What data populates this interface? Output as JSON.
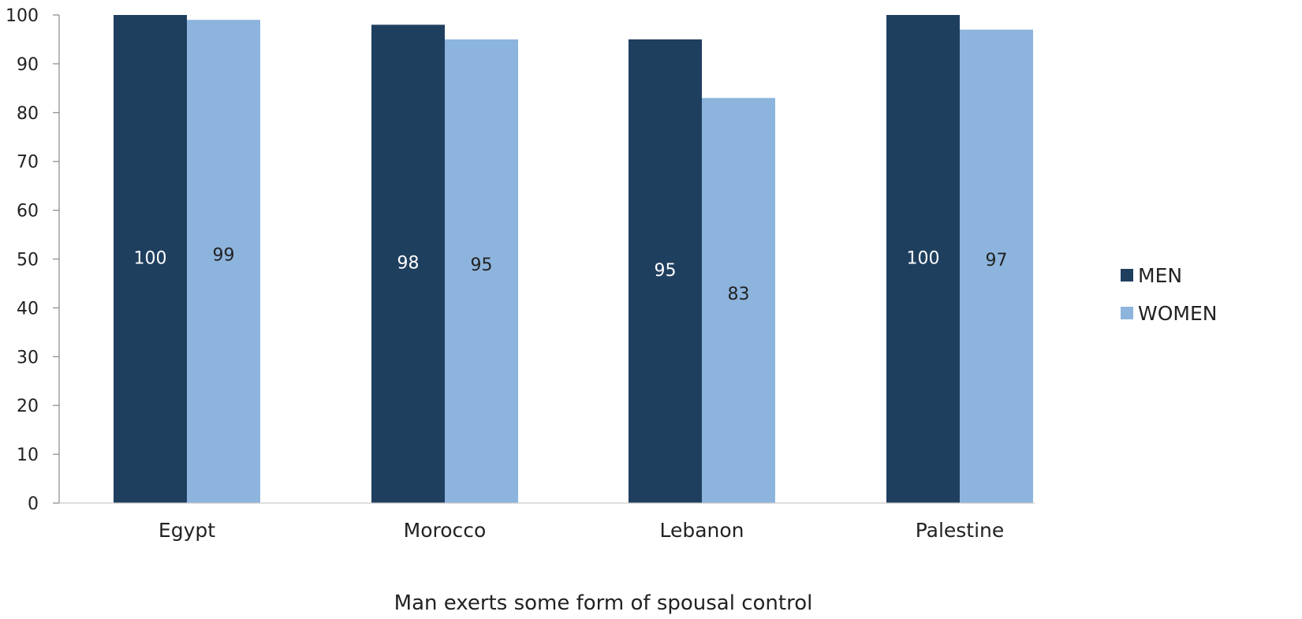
{
  "chart_data": {
    "type": "bar",
    "title": "",
    "xlabel": "Man exerts some form of spousal control",
    "ylabel": "",
    "ylim": [
      0,
      100
    ],
    "yticks": [
      0,
      10,
      20,
      30,
      40,
      50,
      60,
      70,
      80,
      90,
      100
    ],
    "categories": [
      "Egypt",
      "Morocco",
      "Lebanon",
      "Palestine"
    ],
    "series": [
      {
        "name": "MEN",
        "color": "#1f3f5f",
        "label_color": "#ffffff",
        "values": [
          100,
          98,
          95,
          100
        ]
      },
      {
        "name": "WOMEN",
        "color": "#8db4dd",
        "label_color": "#222222",
        "values": [
          99,
          95,
          83,
          97
        ]
      }
    ],
    "grid": false,
    "legend": "right"
  }
}
